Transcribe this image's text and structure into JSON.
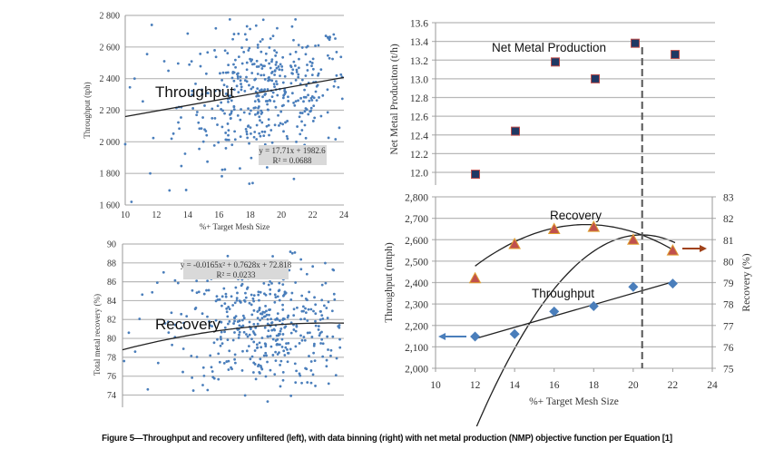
{
  "figure": {
    "caption": "Figure 5—Throughput and recovery unfiltered (left), with data binning (right) with net metal production (NMP) objective function per Equation [1]",
    "colors": {
      "scatter_point": "#4a7ebb",
      "grid": "#b8b8b8",
      "trend": "#222222",
      "eq_box": "#d9d9d9",
      "nmp_marker_fill": "#1f3864",
      "nmp_marker_edge": "#c0504d",
      "recovery_marker": "#c0504d",
      "recovery_marker_edge": "#e0a030",
      "throughput_marker": "#4a7ebb",
      "arrow_left": "#4a7ebb",
      "arrow_right": "#a0421a",
      "dashed": "#555555"
    }
  },
  "chart_data": [
    {
      "id": "throughput-scatter",
      "type": "scatter",
      "title": "",
      "annotation": "Throughput",
      "xlabel": "%+ Target Mesh Size",
      "ylabel": "Throughput (tph)",
      "xlim": [
        10,
        24
      ],
      "ylim": [
        1600,
        2800
      ],
      "xticks": [
        10,
        12,
        14,
        16,
        18,
        20,
        22,
        24
      ],
      "yticks": [
        1600,
        1800,
        2000,
        2200,
        2400,
        2600,
        2800
      ],
      "ytick_labels": [
        "1 600",
        "1 800",
        "2 000",
        "2 200",
        "2 400",
        "2 600",
        "2 800"
      ],
      "grid": true,
      "trendline": {
        "type": "linear",
        "slope": 17.71,
        "intercept": 1982.6,
        "r2": 0.0688
      },
      "equation_label": [
        "y = 17.71x + 1982.6",
        "R² = 0.0688"
      ],
      "points": {
        "note": "approximately 450 individual scatter points; representative sample",
        "count": 450,
        "x_center": 19,
        "x_spread": 3.2,
        "y_center": 2300,
        "y_spread": 210,
        "outliers": [
          [
            10.4,
            1620
          ],
          [
            11.6,
            1800
          ],
          [
            13.9,
            1695
          ],
          [
            20.8,
            1765
          ],
          [
            11.7,
            2740
          ],
          [
            16.7,
            2775
          ],
          [
            20.9,
            2775
          ],
          [
            14.0,
            2685
          ],
          [
            10.0,
            1985
          ],
          [
            10.3,
            2345
          ],
          [
            10.6,
            2400
          ],
          [
            11.4,
            2555
          ],
          [
            12.5,
            2510
          ]
        ]
      }
    },
    {
      "id": "recovery-scatter",
      "type": "scatter",
      "title": "",
      "annotation": "Recovery",
      "xlabel": "",
      "ylabel": "Total metal recovery (%)",
      "xlim": [
        10,
        24
      ],
      "ylim": [
        72.7,
        90
      ],
      "xticks": [],
      "yticks": [
        74,
        76,
        78,
        80,
        82,
        84,
        86,
        88,
        90
      ],
      "ytick_labels": [
        "74",
        "76",
        "78",
        "80",
        "82",
        "84",
        "86",
        "88",
        "90"
      ],
      "grid": true,
      "trendline": {
        "type": "poly2",
        "a": -0.0165,
        "b": 0.7628,
        "c": 72.818,
        "r2": 0.0233
      },
      "equation_label": [
        "y = -0.0165x² + 0.7628x + 72.818",
        "R² = 0.0233"
      ],
      "points": {
        "note": "approximately 450 individual scatter points; representative sample",
        "count": 450,
        "x_center": 19,
        "x_spread": 3.2,
        "y_center": 81.3,
        "y_spread": 3.3,
        "outliers": [
          [
            10.1,
            77.6
          ],
          [
            10.4,
            80.6
          ],
          [
            10.8,
            78.6
          ],
          [
            11.6,
            74.6
          ],
          [
            12.2,
            85.9
          ],
          [
            12.6,
            87.0
          ],
          [
            20.9,
            89.1
          ],
          [
            19.5,
            88.7
          ],
          [
            23.3,
            87.3
          ],
          [
            23.5,
            76.1
          ]
        ]
      }
    },
    {
      "id": "nmp-binned",
      "type": "scatter",
      "title": "",
      "annotation": "Net Metal Production",
      "xlabel": "",
      "ylabel": "Net Metal Produciton (t/h)",
      "xlim": [
        10,
        24
      ],
      "ylim": [
        11.9,
        13.6
      ],
      "yticks": [
        12.0,
        12.2,
        12.4,
        12.6,
        12.8,
        13.0,
        13.2,
        13.4,
        13.6
      ],
      "ytick_labels": [
        "12.0",
        "12.2",
        "12.4",
        "12.6",
        "12.8",
        "13.0",
        "13.2",
        "13.4",
        "13.6"
      ],
      "grid": true,
      "x": [
        12,
        14,
        16,
        18,
        20,
        22
      ],
      "values": [
        11.98,
        12.44,
        13.18,
        13.0,
        13.38,
        13.26
      ],
      "trendline": {
        "type": "poly2",
        "a": -0.0299,
        "b": 1.216,
        "c": -1.032,
        "xrange": [
          12,
          22
        ]
      },
      "optimum_x": 20.35
    },
    {
      "id": "throughput-recovery-binned",
      "type": "line",
      "title": "",
      "xlabel": "%+ Target Mesh Size",
      "ylabel": "Throughput (mtph)",
      "ylabel_right": "Recovery (%)",
      "xlim": [
        10,
        24
      ],
      "ylim": [
        2000,
        2800
      ],
      "ylim_right": [
        75,
        83
      ],
      "xticks": [
        10,
        12,
        14,
        16,
        18,
        20,
        22,
        24
      ],
      "yticks": [
        2000,
        2100,
        2200,
        2300,
        2400,
        2500,
        2600,
        2700,
        2800
      ],
      "ytick_labels": [
        "2,000",
        "2,100",
        "2,200",
        "2,300",
        "2,400",
        "2,500",
        "2,600",
        "2,700",
        "2,800"
      ],
      "yticks_right": [
        75,
        76,
        77,
        78,
        79,
        80,
        81,
        82,
        83
      ],
      "grid": true,
      "x": [
        12,
        14,
        16,
        18,
        20,
        22
      ],
      "series": [
        {
          "name": "Throughput",
          "axis": "left",
          "marker": "diamond",
          "values": [
            2148,
            2160,
            2265,
            2290,
            2380,
            2395
          ],
          "trendline": {
            "type": "linear",
            "slope": 26.5,
            "intercept": 1820,
            "xrange": [
              12,
              22
            ]
          }
        },
        {
          "name": "Recovery",
          "axis": "right",
          "marker": "triangle",
          "values": [
            79.2,
            80.8,
            81.5,
            81.6,
            81.0,
            80.5
          ],
          "trendline": {
            "type": "poly2",
            "a": -0.0612,
            "b": 2.157,
            "c": 62.7,
            "xrange": [
              12,
              22
            ]
          }
        }
      ],
      "annotations": [
        "Recovery",
        "Throughput"
      ],
      "arrows": [
        {
          "points_to": "left-axis",
          "series": "Throughput"
        },
        {
          "points_to": "right-axis",
          "series": "Recovery"
        }
      ],
      "optimum_x": 20.35
    }
  ]
}
